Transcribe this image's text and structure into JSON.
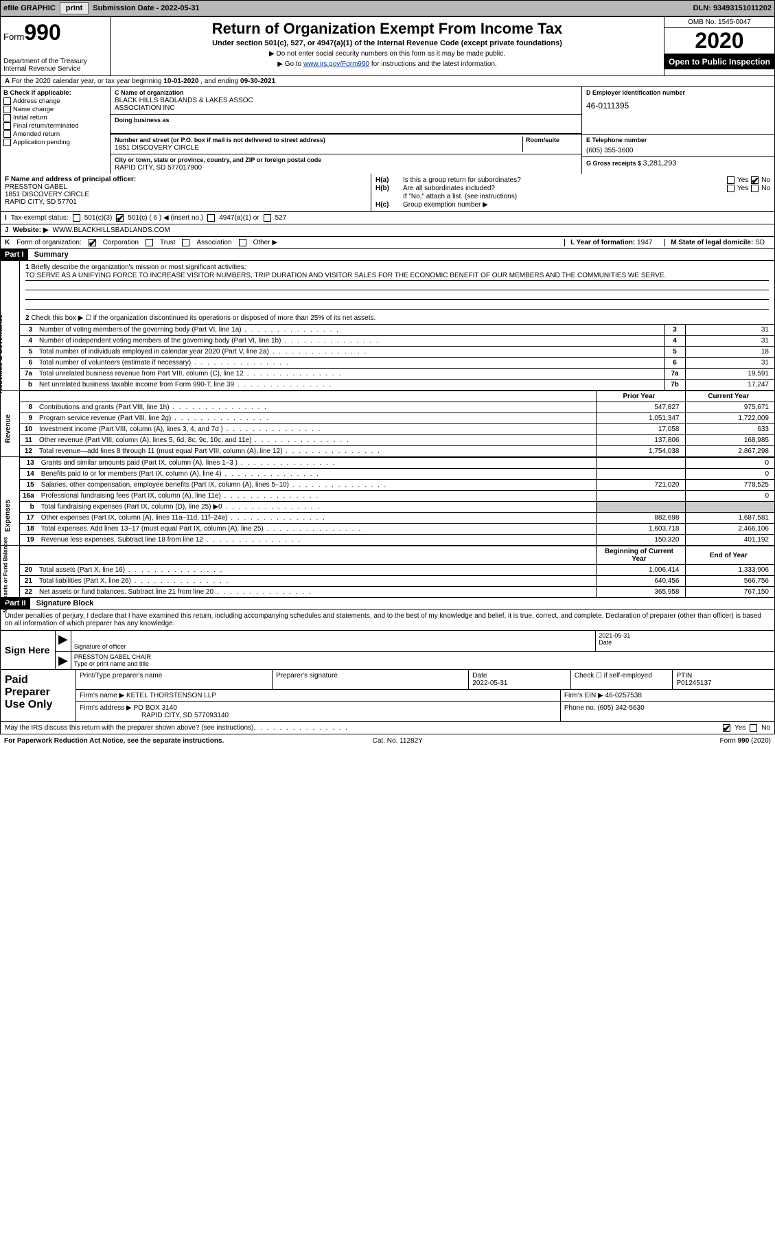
{
  "header": {
    "efile_label": "efile GRAPHIC",
    "print_btn": "print",
    "submission_label": "Submission Date - ",
    "submission_date": "2022-05-31",
    "dln_label": "DLN: ",
    "dln": "93493151011202"
  },
  "form_top": {
    "form_word": "Form",
    "form_num": "990",
    "dept": "Department of the Treasury",
    "irs": "Internal Revenue Service",
    "title": "Return of Organization Exempt From Income Tax",
    "subtitle": "Under section 501(c), 527, or 4947(a)(1) of the Internal Revenue Code (except private foundations)",
    "inst1": "▶ Do not enter social security numbers on this form as it may be made public.",
    "inst2_pre": "▶ Go to ",
    "inst2_link": "www.irs.gov/Form990",
    "inst2_post": " for instructions and the latest information.",
    "omb": "OMB No. 1545-0047",
    "year": "2020",
    "open_public": "Open to Public Inspection"
  },
  "row_a": {
    "prefix": "A",
    "text": "For the 2020 calendar year, or tax year beginning ",
    "begin": "10-01-2020",
    "mid": " , and ending ",
    "end": "09-30-2021"
  },
  "col_b": {
    "label": "B Check if applicable:",
    "items": [
      "Address change",
      "Name change",
      "Initial return",
      "Final return/terminated",
      "Amended return",
      "Application pending"
    ]
  },
  "org": {
    "c_label": "C Name of organization",
    "name1": "BLACK HILLS BADLANDS & LAKES ASSOC",
    "name2": "ASSOCIATION INC",
    "dba_label": "Doing business as",
    "addr_label": "Number and street (or P.O. box if mail is not delivered to street address)",
    "room_label": "Room/suite",
    "addr": "1851 DISCOVERY CIRCLE",
    "city_label": "City or town, state or province, country, and ZIP or foreign postal code",
    "city": "RAPID CITY, SD  577017900"
  },
  "d": {
    "label": "D Employer identification number",
    "value": "46-0111395"
  },
  "e": {
    "label": "E Telephone number",
    "value": "(605) 355-3600"
  },
  "g": {
    "label": "G Gross receipts $ ",
    "value": "3,281,293"
  },
  "f": {
    "label": "F  Name and address of principal officer:",
    "name": "PRESSTON GABEL",
    "addr1": "1851 DISCOVERY CIRCLE",
    "addr2": "RAPID CITY, SD  57701"
  },
  "h": {
    "a_label": "H(a)",
    "a_q": "Is this a group return for subordinates?",
    "b_label": "H(b)",
    "b_q": "Are all subordinates included?",
    "note": "If \"No,\" attach a list. (see instructions)",
    "c_label": "H(c)",
    "c_q": "Group exemption number ▶"
  },
  "i": {
    "label": "I",
    "text": "Tax-exempt status:",
    "opts": [
      "501(c)(3)",
      "501(c) ( 6 ) ◀ (insert no.)",
      "4947(a)(1) or",
      "527"
    ],
    "checked_index": 1
  },
  "j": {
    "label": "J",
    "text": "Website: ▶",
    "value": "WWW.BLACKHILLSBADLANDS.COM"
  },
  "k": {
    "label": "K",
    "text": "Form of organization:",
    "opts": [
      "Corporation",
      "Trust",
      "Association",
      "Other ▶"
    ],
    "checked_index": 0,
    "l_label": "L Year of formation: ",
    "l_val": "1947",
    "m_label": "M State of legal domicile: ",
    "m_val": "SD"
  },
  "part1": {
    "part": "Part I",
    "title": "Summary",
    "line1_label": "1",
    "line1_text": "Briefly describe the organization's mission or most significant activities:",
    "mission": "TO SERVE AS A UNIFYING FORCE TO INCREASE VISITOR NUMBERS, TRIP DURATION AND VISITOR SALES FOR THE ECONOMIC BENEFIT OF OUR MEMBERS AND THE COMMUNITIES WE SERVE.",
    "line2_label": "2",
    "line2_text": "Check this box ▶ ☐ if the organization discontinued its operations or disposed of more than 25% of its net assets.",
    "governance_lines": [
      {
        "n": "3",
        "desc": "Number of voting members of the governing body (Part VI, line 1a)",
        "box": "3",
        "val": "31"
      },
      {
        "n": "4",
        "desc": "Number of independent voting members of the governing body (Part VI, line 1b)",
        "box": "4",
        "val": "31"
      },
      {
        "n": "5",
        "desc": "Total number of individuals employed in calendar year 2020 (Part V, line 2a)",
        "box": "5",
        "val": "18"
      },
      {
        "n": "6",
        "desc": "Total number of volunteers (estimate if necessary)",
        "box": "6",
        "val": "31"
      },
      {
        "n": "7a",
        "desc": "Total unrelated business revenue from Part VIII, column (C), line 12",
        "box": "7a",
        "val": "19,591"
      },
      {
        "n": "b",
        "desc": "Net unrelated business taxable income from Form 990-T, line 39",
        "box": "7b",
        "val": "17,247"
      }
    ],
    "py_label": "Prior Year",
    "cy_label": "Current Year",
    "revenue_lines": [
      {
        "n": "8",
        "desc": "Contributions and grants (Part VIII, line 1h)",
        "py": "547,827",
        "cy": "975,671"
      },
      {
        "n": "9",
        "desc": "Program service revenue (Part VIII, line 2g)",
        "py": "1,051,347",
        "cy": "1,722,009"
      },
      {
        "n": "10",
        "desc": "Investment income (Part VIII, column (A), lines 3, 4, and 7d )",
        "py": "17,058",
        "cy": "633"
      },
      {
        "n": "11",
        "desc": "Other revenue (Part VIII, column (A), lines 5, 6d, 8c, 9c, 10c, and 11e)",
        "py": "137,806",
        "cy": "168,985"
      },
      {
        "n": "12",
        "desc": "Total revenue—add lines 8 through 11 (must equal Part VIII, column (A), line 12)",
        "py": "1,754,038",
        "cy": "2,867,298"
      }
    ],
    "expense_lines": [
      {
        "n": "13",
        "desc": "Grants and similar amounts paid (Part IX, column (A), lines 1–3 )",
        "py": "",
        "cy": "0"
      },
      {
        "n": "14",
        "desc": "Benefits paid to or for members (Part IX, column (A), line 4)",
        "py": "",
        "cy": "0"
      },
      {
        "n": "15",
        "desc": "Salaries, other compensation, employee benefits (Part IX, column (A), lines 5–10)",
        "py": "721,020",
        "cy": "778,525"
      },
      {
        "n": "16a",
        "desc": "Professional fundraising fees (Part IX, column (A), line 11e)",
        "py": "",
        "cy": "0"
      },
      {
        "n": "b",
        "desc": "Total fundraising expenses (Part IX, column (D), line 25) ▶0",
        "py": "GREY",
        "cy": "GREY"
      },
      {
        "n": "17",
        "desc": "Other expenses (Part IX, column (A), lines 11a–11d, 11f–24e)",
        "py": "882,698",
        "cy": "1,687,581"
      },
      {
        "n": "18",
        "desc": "Total expenses. Add lines 13–17 (must equal Part IX, column (A), line 25)",
        "py": "1,603,718",
        "cy": "2,466,106"
      },
      {
        "n": "19",
        "desc": "Revenue less expenses. Subtract line 18 from line 12",
        "py": "150,320",
        "cy": "401,192"
      }
    ],
    "bcy_label": "Beginning of Current Year",
    "eoy_label": "End of Year",
    "net_lines": [
      {
        "n": "20",
        "desc": "Total assets (Part X, line 16)",
        "py": "1,006,414",
        "cy": "1,333,906"
      },
      {
        "n": "21",
        "desc": "Total liabilities (Part X, line 26)",
        "py": "640,456",
        "cy": "566,756"
      },
      {
        "n": "22",
        "desc": "Net assets or fund balances. Subtract line 21 from line 20",
        "py": "365,958",
        "cy": "767,150"
      }
    ],
    "vtabs": [
      "Activities & Governance",
      "Revenue",
      "Expenses",
      "Net Assets or Fund Balances"
    ]
  },
  "part2": {
    "part": "Part II",
    "title": "Signature Block",
    "decl": "Under penalties of perjury, I declare that I have examined this return, including accompanying schedules and statements, and to the best of my knowledge and belief, it is true, correct, and complete. Declaration of preparer (other than officer) is based on all information of which preparer has any knowledge.",
    "sign_here": "Sign Here",
    "sig_officer": "Signature of officer",
    "sig_date": "Date",
    "sig_date_val": "2021-05-31",
    "sig_name": "PRESSTON GABEL CHAIR",
    "sig_name_label": "Type or print name and title",
    "paid_prep": "Paid Preparer Use Only",
    "prep_name_label": "Print/Type preparer's name",
    "prep_sig_label": "Preparer's signature",
    "prep_date_label": "Date",
    "prep_date": "2022-05-31",
    "prep_check_label": "Check ☐ if self-employed",
    "ptin_label": "PTIN",
    "ptin": "P01245137",
    "firm_name_label": "Firm's name    ▶",
    "firm_name": "KETEL THORSTENSON LLP",
    "firm_ein_label": "Firm's EIN ▶",
    "firm_ein": "46-0257538",
    "firm_addr_label": "Firm's address ▶",
    "firm_addr1": "PO BOX 3140",
    "firm_addr2": "RAPID CITY, SD  577093140",
    "phone_label": "Phone no.",
    "phone": "(605) 342-5630",
    "discuss": "May the IRS discuss this return with the preparer shown above? (see instructions)",
    "yes": "Yes",
    "no": "No"
  },
  "footer": {
    "pra": "For Paperwork Reduction Act Notice, see the separate instructions.",
    "cat": "Cat. No. 11282Y",
    "form": "Form 990 (2020)"
  },
  "colors": {
    "hdr_bg": "#b8b8b8",
    "black": "#000000",
    "link": "#003399",
    "grey_cell": "#cccccc"
  }
}
